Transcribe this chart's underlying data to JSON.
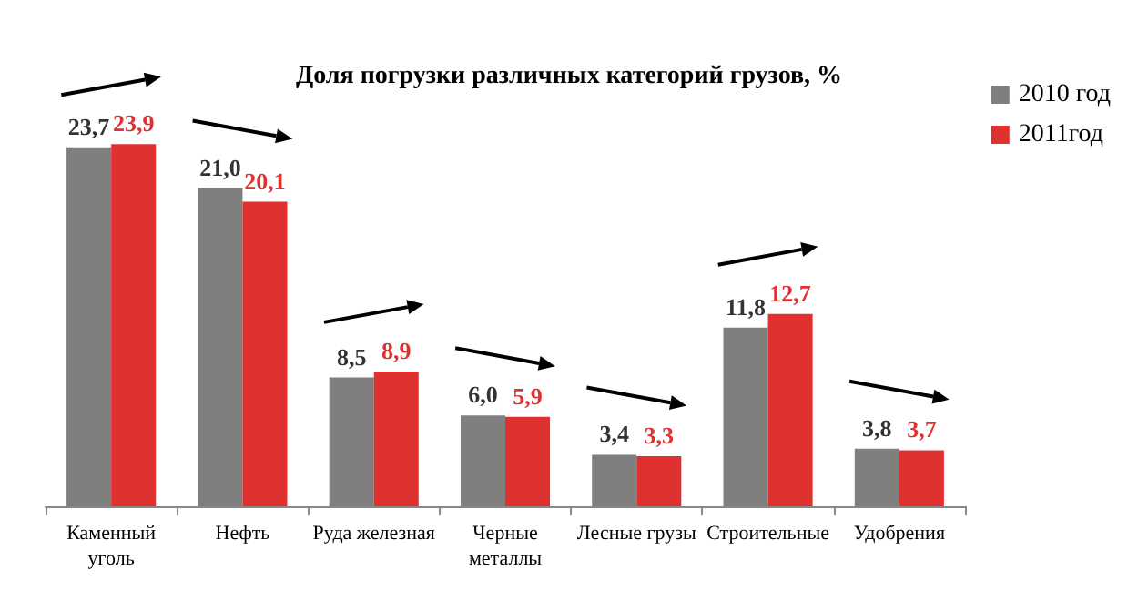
{
  "chart_data": {
    "type": "bar",
    "title": "Доля погрузки различных категорий грузов, %",
    "categories": [
      "Каменный\nуголь",
      "Нефть",
      "Руда железная",
      "Черные\nметаллы",
      "Лесные грузы",
      "Строительные",
      "Удобрения"
    ],
    "series": [
      {
        "name": "2010 год",
        "color": "#7f7f7f",
        "values": [
          23.7,
          21.0,
          8.5,
          6.0,
          3.4,
          11.8,
          3.8
        ],
        "value_labels": [
          "23,7",
          "21,0",
          "8,5",
          "6,0",
          "3,4",
          "11,8",
          "3,8"
        ]
      },
      {
        "name": "2011год",
        "color": "#e03131",
        "values": [
          23.9,
          20.1,
          8.9,
          5.9,
          3.3,
          12.7,
          3.7
        ],
        "value_labels": [
          "23,9",
          "20,1",
          "8,9",
          "5,9",
          "3,3",
          "12,7",
          "3,7"
        ]
      }
    ],
    "legend": "top right",
    "tick_labels": "x"
  }
}
